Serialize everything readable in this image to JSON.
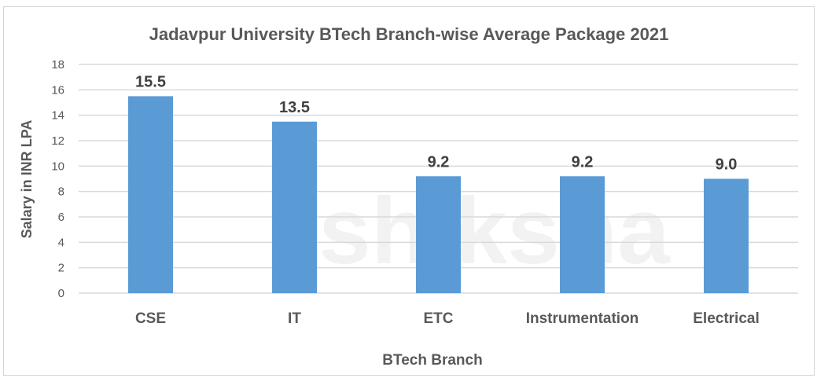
{
  "watermark": "shiksha",
  "chart_data": {
    "type": "bar",
    "title": "Jadavpur University BTech Branch-wise Average Package 2021",
    "xlabel": "BTech Branch",
    "ylabel": "Salary in INR LPA",
    "categories": [
      "CSE",
      "IT",
      "ETC",
      "Instrumentation",
      "Electrical"
    ],
    "values": [
      15.5,
      13.5,
      9.2,
      9.2,
      9.0
    ],
    "data_labels": [
      "15.5",
      "13.5",
      "9.2",
      "9.2",
      "9.0"
    ],
    "ylim": [
      0,
      18
    ],
    "yticks": [
      "0",
      "2",
      "4",
      "6",
      "8",
      "10",
      "12",
      "14",
      "16",
      "18"
    ],
    "grid": true,
    "legend": "none",
    "bar_color": "#5b9bd5",
    "text_color": "#404040"
  }
}
